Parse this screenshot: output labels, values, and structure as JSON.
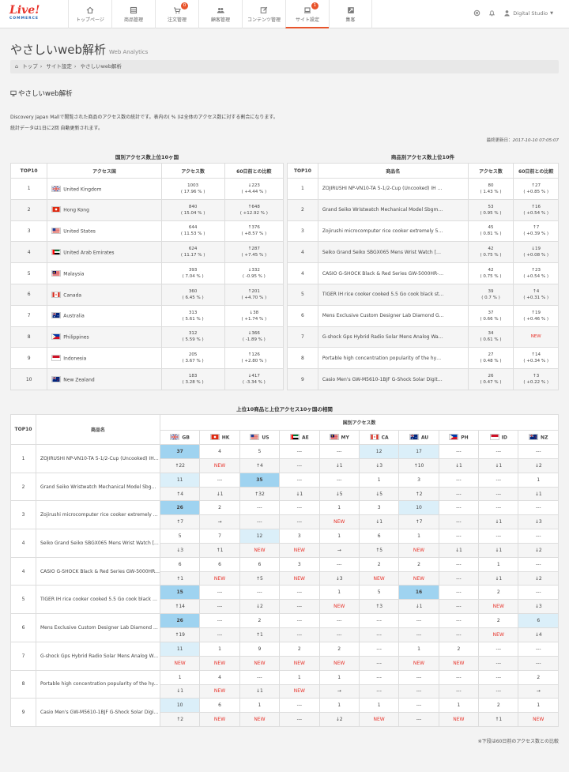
{
  "brand": {
    "logo": "Live!",
    "sub": "COMMERCE"
  },
  "nav": [
    {
      "label": "トップページ",
      "icon": "home-icon",
      "badge": ""
    },
    {
      "label": "商品管理",
      "icon": "box-icon",
      "badge": ""
    },
    {
      "label": "注文管理",
      "icon": "cart-icon",
      "badge": "0"
    },
    {
      "label": "顧客管理",
      "icon": "users-icon",
      "badge": ""
    },
    {
      "label": "コンテンツ管理",
      "icon": "edit-icon",
      "badge": ""
    },
    {
      "label": "サイト設定",
      "icon": "laptop-icon",
      "badge": "1"
    },
    {
      "label": "集客",
      "icon": "share-icon",
      "badge": ""
    }
  ],
  "user": "Digital Studio",
  "page": {
    "title": "やさしいweb解析",
    "subtitle": "Web Analytics"
  },
  "breadcrumb": [
    "トップ",
    "サイト設定",
    "やさしいweb解析"
  ],
  "panel": {
    "title": "やさしいweb解析",
    "desc1": "Discovery Japan Mallで閲覧された商品のアクセス数の統計です。表内の( % )は全体のアクセス数に対する割合になります。",
    "desc2": "統計データは1日に2回 自動更新されます。",
    "updated_label": "最終更新日：",
    "updated": "2017-10-10 07:05:07"
  },
  "country_table": {
    "title": "国別アクセス数上位10ヶ国",
    "headers": [
      "TOP10",
      "アクセス国",
      "アクセス数",
      "60日前との比較"
    ],
    "rows": [
      {
        "rank": "1",
        "name": "United Kingdom",
        "flag": "gb",
        "count": "1003",
        "pct": "( 17.96 % )",
        "diff": "↓223",
        "dpct": "( +4.44 % )"
      },
      {
        "rank": "2",
        "name": "Hong Kong",
        "flag": "hk",
        "count": "840",
        "pct": "( 15.04 % )",
        "diff": "↑648",
        "dpct": "( +12.92 % )"
      },
      {
        "rank": "3",
        "name": "United States",
        "flag": "us",
        "count": "644",
        "pct": "( 11.53 % )",
        "diff": "↑376",
        "dpct": "( +8.57 % )"
      },
      {
        "rank": "4",
        "name": "United Arab Emirates",
        "flag": "ae",
        "count": "624",
        "pct": "( 11.17 % )",
        "diff": "↑287",
        "dpct": "( +7.45 % )"
      },
      {
        "rank": "5",
        "name": "Malaysia",
        "flag": "my",
        "count": "393",
        "pct": "( 7.04 % )",
        "diff": "↓332",
        "dpct": "( -0.95 % )"
      },
      {
        "rank": "6",
        "name": "Canada",
        "flag": "ca",
        "count": "360",
        "pct": "( 6.45 % )",
        "diff": "↑201",
        "dpct": "( +4.70 % )"
      },
      {
        "rank": "7",
        "name": "Australia",
        "flag": "au",
        "count": "313",
        "pct": "( 5.61 % )",
        "diff": "↓38",
        "dpct": "( +1.74 % )"
      },
      {
        "rank": "8",
        "name": "Philippines",
        "flag": "ph",
        "count": "312",
        "pct": "( 5.59 % )",
        "diff": "↓366",
        "dpct": "( -1.89 % )"
      },
      {
        "rank": "9",
        "name": "Indonesia",
        "flag": "id",
        "count": "205",
        "pct": "( 3.67 % )",
        "diff": "↑126",
        "dpct": "( +2.80 % )"
      },
      {
        "rank": "10",
        "name": "New Zealand",
        "flag": "nz",
        "count": "183",
        "pct": "( 3.28 % )",
        "diff": "↓417",
        "dpct": "( -3.34 % )"
      }
    ]
  },
  "product_table": {
    "title": "商品別アクセス数上位10件",
    "headers": [
      "TOP10",
      "商品名",
      "アクセス数",
      "60日前との比較"
    ],
    "rows": [
      {
        "rank": "1",
        "name": "ZOJIRUSHI NP-VN10-TA 5-1/2-Cup (Uncooked) IH Rice...",
        "count": "80",
        "pct": "( 1.43 % )",
        "diff": "↑27",
        "dpct": "( +0.85 % )"
      },
      {
        "rank": "2",
        "name": "Grand Seiko Wristwatch Mechanical Model Sbgm021 ...",
        "count": "53",
        "pct": "( 0.95 % )",
        "diff": "↑16",
        "dpct": "( +0.54 % )"
      },
      {
        "rank": "3",
        "name": "Zojirushi microcomputer rice cooker extremely 5.5 G...",
        "count": "45",
        "pct": "( 0.81 % )",
        "diff": "↑7",
        "dpct": "( +0.39 % )"
      },
      {
        "rank": "4",
        "name": "Seiko Grand Seiko SBGX065 Mens Wrist Watch [DJO]",
        "count": "42",
        "pct": "( 0.75 % )",
        "diff": "↓19",
        "dpct": "( +0.08 % )"
      },
      {
        "rank": "4",
        "name": "CASIO G-SHOCK Black & Red Series GW-5000HR-1JF ...",
        "count": "42",
        "pct": "( 0.75 % )",
        "diff": "↑23",
        "dpct": "( +0.54 % )"
      },
      {
        "rank": "5",
        "name": "TIGER IH rice cooker cooked 5.5 Go cook black stainle...",
        "count": "39",
        "pct": "( 0.7 % )",
        "diff": "↑4",
        "dpct": "( +0.31 % )"
      },
      {
        "rank": "6",
        "name": "Mens Exclusive Custom Designer Lab Diamond G-Sh...",
        "count": "37",
        "pct": "( 0.66 % )",
        "diff": "↑19",
        "dpct": "( +0.46 % )"
      },
      {
        "rank": "7",
        "name": "G-shock Gps Hybrid Radio Solar Mens Analog Watch ...",
        "count": "34",
        "pct": "( 0.61 % )",
        "diff": "NEW",
        "dpct": ""
      },
      {
        "rank": "8",
        "name": "Portable high concentration popularity of the hydrog...",
        "count": "27",
        "pct": "( 0.48 % )",
        "diff": "↑14",
        "dpct": "( +0.34 % )"
      },
      {
        "rank": "9",
        "name": "Casio Men's GW-M5610-1BJF G-Shock Solar Digital M...",
        "count": "26",
        "pct": "( 0.47 % )",
        "diff": "↑3",
        "dpct": "( +0.22 % )"
      }
    ]
  },
  "matrix": {
    "title": "上位10商品と上位アクセス10ヶ国の相関",
    "h_top": "TOP10",
    "h_name": "商品名",
    "h_group": "国別アクセス数",
    "countries": [
      {
        "code": "GB",
        "flag": "gb"
      },
      {
        "code": "HK",
        "flag": "hk"
      },
      {
        "code": "US",
        "flag": "us"
      },
      {
        "code": "AE",
        "flag": "ae"
      },
      {
        "code": "MY",
        "flag": "my"
      },
      {
        "code": "CA",
        "flag": "ca"
      },
      {
        "code": "AU",
        "flag": "au"
      },
      {
        "code": "PH",
        "flag": "ph"
      },
      {
        "code": "ID",
        "flag": "id"
      },
      {
        "code": "NZ",
        "flag": "nz"
      }
    ],
    "rows": [
      {
        "rank": "1",
        "name": "ZOJIRUSHI NP-VN10-TA 5-1/2-Cup (Uncooked) IH Ric...",
        "vals": [
          "37",
          "4",
          "5",
          "---",
          "---",
          "12",
          "17",
          "---",
          "---",
          "---"
        ],
        "hl": [
          "h",
          "",
          "",
          "",
          "",
          "l",
          "l",
          "",
          "",
          ""
        ],
        "diffs": [
          "↑22",
          "NEW",
          "↑4",
          "---",
          "↓1",
          "↓3",
          "↑10",
          "↓1",
          "↓1",
          "↓2"
        ]
      },
      {
        "rank": "2",
        "name": "Grand Seiko Wristwatch Mechanical Model Sbgm...",
        "vals": [
          "11",
          "---",
          "35",
          "---",
          "---",
          "1",
          "3",
          "---",
          "---",
          "1"
        ],
        "hl": [
          "l",
          "",
          "h",
          "",
          "",
          "",
          "",
          "",
          "",
          ""
        ],
        "diffs": [
          "↑4",
          "↓1",
          "↑32",
          "↓1",
          "↓5",
          "↓5",
          "↑2",
          "---",
          "---",
          "↓1"
        ]
      },
      {
        "rank": "3",
        "name": "Zojirushi microcomputer rice cooker extremely 5...",
        "vals": [
          "26",
          "2",
          "---",
          "---",
          "1",
          "3",
          "10",
          "---",
          "---",
          "---"
        ],
        "hl": [
          "h",
          "",
          "",
          "",
          "",
          "",
          "l",
          "",
          "",
          ""
        ],
        "diffs": [
          "↑7",
          "→",
          "---",
          "---",
          "NEW",
          "↓1",
          "↑7",
          "---",
          "↓1",
          "↓3"
        ]
      },
      {
        "rank": "4",
        "name": "Seiko Grand Seiko SBGX065 Mens Wrist Watch [...",
        "vals": [
          "5",
          "7",
          "12",
          "3",
          "1",
          "6",
          "1",
          "---",
          "---",
          "---"
        ],
        "hl": [
          "",
          "",
          "l",
          "",
          "",
          "",
          "",
          "",
          "",
          ""
        ],
        "diffs": [
          "↓3",
          "↑1",
          "NEW",
          "NEW",
          "→",
          "↑5",
          "NEW",
          "↓1",
          "↓1",
          "↓2"
        ]
      },
      {
        "rank": "4",
        "name": "CASIO G-SHOCK Black & Red Series GW-5000HR-...",
        "vals": [
          "6",
          "6",
          "6",
          "3",
          "---",
          "2",
          "2",
          "---",
          "1",
          "---"
        ],
        "hl": [
          "",
          "",
          "",
          "",
          "",
          "",
          "",
          "",
          "",
          ""
        ],
        "diffs": [
          "↑1",
          "NEW",
          "↑5",
          "NEW",
          "↓3",
          "NEW",
          "NEW",
          "---",
          "↓1",
          "↓2"
        ]
      },
      {
        "rank": "5",
        "name": "TIGER IH rice cooker cooked 5.5 Go cook black st...",
        "vals": [
          "15",
          "---",
          "---",
          "---",
          "1",
          "5",
          "16",
          "---",
          "2",
          "---"
        ],
        "hl": [
          "h",
          "",
          "",
          "",
          "",
          "",
          "h",
          "",
          "",
          ""
        ],
        "diffs": [
          "↑14",
          "---",
          "↓2",
          "---",
          "NEW",
          "↑3",
          "↓1",
          "---",
          "NEW",
          "↓3"
        ]
      },
      {
        "rank": "6",
        "name": "Mens Exclusive Custom Designer Lab Diamond ...",
        "vals": [
          "26",
          "---",
          "2",
          "---",
          "---",
          "---",
          "---",
          "---",
          "2",
          "6"
        ],
        "hl": [
          "h",
          "",
          "",
          "",
          "",
          "",
          "",
          "",
          "",
          "l"
        ],
        "diffs": [
          "↑19",
          "---",
          "↑1",
          "---",
          "---",
          "---",
          "---",
          "---",
          "NEW",
          "↓4"
        ]
      },
      {
        "rank": "7",
        "name": "G-shock Gps Hybrid Radio Solar Mens Analog Wa...",
        "vals": [
          "11",
          "1",
          "9",
          "2",
          "2",
          "---",
          "1",
          "2",
          "---",
          "---"
        ],
        "hl": [
          "l",
          "",
          "",
          "",
          "",
          "",
          "",
          "",
          "",
          ""
        ],
        "diffs": [
          "NEW",
          "NEW",
          "NEW",
          "NEW",
          "NEW",
          "---",
          "NEW",
          "NEW",
          "---",
          "---"
        ]
      },
      {
        "rank": "8",
        "name": "Portable high concentration popularity of the hy...",
        "vals": [
          "1",
          "4",
          "---",
          "1",
          "1",
          "---",
          "---",
          "---",
          "---",
          "2"
        ],
        "hl": [
          "",
          "",
          "",
          "",
          "",
          "",
          "",
          "",
          "",
          ""
        ],
        "diffs": [
          "↓1",
          "NEW",
          "↓1",
          "NEW",
          "→",
          "---",
          "---",
          "---",
          "---",
          "→"
        ]
      },
      {
        "rank": "9",
        "name": "Casio Men's GW-M5610-1BJF G-Shock Solar Digit...",
        "vals": [
          "10",
          "6",
          "1",
          "---",
          "1",
          "1",
          "---",
          "1",
          "2",
          "1"
        ],
        "hl": [
          "l",
          "",
          "",
          "",
          "",
          "",
          "",
          "",
          "",
          ""
        ],
        "diffs": [
          "↑2",
          "NEW",
          "NEW",
          "---",
          "↓2",
          "NEW",
          "---",
          "NEW",
          "↑1",
          "NEW"
        ]
      }
    ],
    "footnote": "※下段は60日前のアクセス数との比較"
  }
}
